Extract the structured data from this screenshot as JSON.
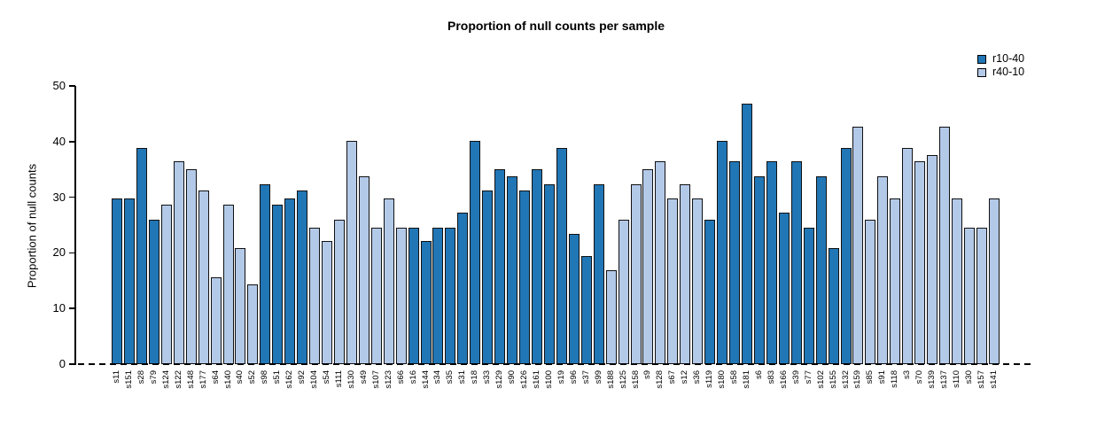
{
  "legend": {
    "entries": [
      {
        "label": "r10-40",
        "color": "#2176b5"
      },
      {
        "label": "r40-10",
        "color": "#b3c9e8"
      }
    ]
  },
  "chart_data": {
    "type": "bar",
    "title": "Proportion of null counts per sample",
    "xlabel": "",
    "ylabel": "Proportion of null counts",
    "ylim": [
      0,
      50
    ],
    "yticks": [
      0,
      10,
      20,
      30,
      40,
      50
    ],
    "grid": false,
    "legend_position": "top-right",
    "zero_line_style": "dashed",
    "xlabel_rotation_deg": 90,
    "series_colors": {
      "r10-40": "#2176b5",
      "r40-10": "#b3c9e8"
    },
    "bars": [
      {
        "label": "s11",
        "value": 29.8,
        "series": "r10-40"
      },
      {
        "label": "s151",
        "value": 29.8,
        "series": "r10-40"
      },
      {
        "label": "s28",
        "value": 38.9,
        "series": "r10-40"
      },
      {
        "label": "s79",
        "value": 25.9,
        "series": "r10-40"
      },
      {
        "label": "s124",
        "value": 28.6,
        "series": "r40-10"
      },
      {
        "label": "s122",
        "value": 36.4,
        "series": "r40-10"
      },
      {
        "label": "s148",
        "value": 35.0,
        "series": "r40-10"
      },
      {
        "label": "s177",
        "value": 31.2,
        "series": "r40-10"
      },
      {
        "label": "s64",
        "value": 15.6,
        "series": "r40-10"
      },
      {
        "label": "s140",
        "value": 28.6,
        "series": "r40-10"
      },
      {
        "label": "s40",
        "value": 20.8,
        "series": "r40-10"
      },
      {
        "label": "s52",
        "value": 14.3,
        "series": "r40-10"
      },
      {
        "label": "s98",
        "value": 32.4,
        "series": "r10-40"
      },
      {
        "label": "s51",
        "value": 28.6,
        "series": "r10-40"
      },
      {
        "label": "s162",
        "value": 29.8,
        "series": "r10-40"
      },
      {
        "label": "s92",
        "value": 31.2,
        "series": "r10-40"
      },
      {
        "label": "s104",
        "value": 24.5,
        "series": "r40-10"
      },
      {
        "label": "s54",
        "value": 22.1,
        "series": "r40-10"
      },
      {
        "label": "s111",
        "value": 25.9,
        "series": "r40-10"
      },
      {
        "label": "s130",
        "value": 40.2,
        "series": "r40-10"
      },
      {
        "label": "s49",
        "value": 33.8,
        "series": "r40-10"
      },
      {
        "label": "s107",
        "value": 24.5,
        "series": "r40-10"
      },
      {
        "label": "s123",
        "value": 29.8,
        "series": "r40-10"
      },
      {
        "label": "s66",
        "value": 24.5,
        "series": "r40-10"
      },
      {
        "label": "s16",
        "value": 24.5,
        "series": "r10-40"
      },
      {
        "label": "s144",
        "value": 22.1,
        "series": "r10-40"
      },
      {
        "label": "s34",
        "value": 24.5,
        "series": "r10-40"
      },
      {
        "label": "s35",
        "value": 24.5,
        "series": "r10-40"
      },
      {
        "label": "s31",
        "value": 27.3,
        "series": "r10-40"
      },
      {
        "label": "s18",
        "value": 40.2,
        "series": "r10-40"
      },
      {
        "label": "s33",
        "value": 31.2,
        "series": "r10-40"
      },
      {
        "label": "s129",
        "value": 35.0,
        "series": "r10-40"
      },
      {
        "label": "s90",
        "value": 33.7,
        "series": "r10-40"
      },
      {
        "label": "s126",
        "value": 31.2,
        "series": "r10-40"
      },
      {
        "label": "s161",
        "value": 35.0,
        "series": "r10-40"
      },
      {
        "label": "s100",
        "value": 32.4,
        "series": "r10-40"
      },
      {
        "label": "s19",
        "value": 38.9,
        "series": "r10-40"
      },
      {
        "label": "s96",
        "value": 23.4,
        "series": "r10-40"
      },
      {
        "label": "s37",
        "value": 19.5,
        "series": "r10-40"
      },
      {
        "label": "s99",
        "value": 32.4,
        "series": "r10-40"
      },
      {
        "label": "s188",
        "value": 16.9,
        "series": "r40-10"
      },
      {
        "label": "s125",
        "value": 25.9,
        "series": "r40-10"
      },
      {
        "label": "s158",
        "value": 32.4,
        "series": "r40-10"
      },
      {
        "label": "s9",
        "value": 35.0,
        "series": "r40-10"
      },
      {
        "label": "s128",
        "value": 36.4,
        "series": "r40-10"
      },
      {
        "label": "s67",
        "value": 29.8,
        "series": "r40-10"
      },
      {
        "label": "s12",
        "value": 32.4,
        "series": "r40-10"
      },
      {
        "label": "s36",
        "value": 29.8,
        "series": "r40-10"
      },
      {
        "label": "s119",
        "value": 25.9,
        "series": "r10-40"
      },
      {
        "label": "s180",
        "value": 40.2,
        "series": "r10-40"
      },
      {
        "label": "s58",
        "value": 36.4,
        "series": "r10-40"
      },
      {
        "label": "s181",
        "value": 46.8,
        "series": "r10-40"
      },
      {
        "label": "s6",
        "value": 33.7,
        "series": "r10-40"
      },
      {
        "label": "s83",
        "value": 36.4,
        "series": "r10-40"
      },
      {
        "label": "s166",
        "value": 27.3,
        "series": "r10-40"
      },
      {
        "label": "s39",
        "value": 36.4,
        "series": "r10-40"
      },
      {
        "label": "s77",
        "value": 24.5,
        "series": "r10-40"
      },
      {
        "label": "s102",
        "value": 33.7,
        "series": "r10-40"
      },
      {
        "label": "s155",
        "value": 20.8,
        "series": "r10-40"
      },
      {
        "label": "s132",
        "value": 38.9,
        "series": "r10-40"
      },
      {
        "label": "s159",
        "value": 42.7,
        "series": "r40-10"
      },
      {
        "label": "s85",
        "value": 25.9,
        "series": "r40-10"
      },
      {
        "label": "s91",
        "value": 33.7,
        "series": "r40-10"
      },
      {
        "label": "s118",
        "value": 29.8,
        "series": "r40-10"
      },
      {
        "label": "s3",
        "value": 38.9,
        "series": "r40-10"
      },
      {
        "label": "s70",
        "value": 36.4,
        "series": "r40-10"
      },
      {
        "label": "s139",
        "value": 37.6,
        "series": "r40-10"
      },
      {
        "label": "s137",
        "value": 42.7,
        "series": "r40-10"
      },
      {
        "label": "s110",
        "value": 29.8,
        "series": "r40-10"
      },
      {
        "label": "s30",
        "value": 24.5,
        "series": "r40-10"
      },
      {
        "label": "s157",
        "value": 24.5,
        "series": "r40-10"
      },
      {
        "label": "s141",
        "value": 29.8,
        "series": "r40-10"
      }
    ]
  }
}
